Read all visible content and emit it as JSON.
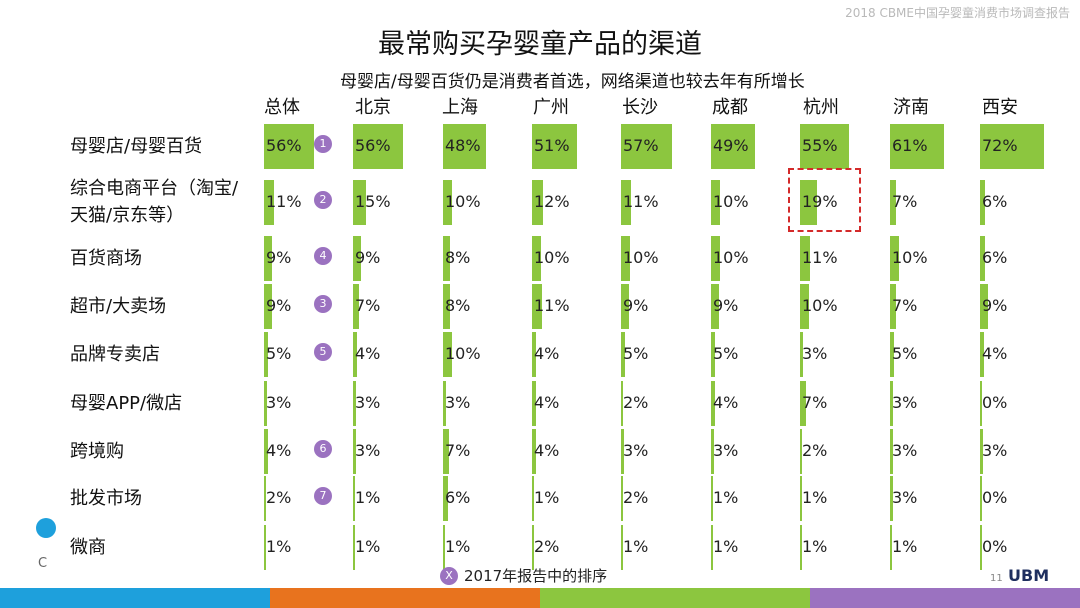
{
  "header_note": "2018 CBME中国孕婴童消费市场调查报告",
  "title": "最常购买孕婴童产品的渠道",
  "subtitle": "母婴店/母婴百货仍是消费者首选，网络渠道也较去年有所增长",
  "columns": [
    "总体",
    "北京",
    "上海",
    "广州",
    "长沙",
    "成都",
    "杭州",
    "济南",
    "西安"
  ],
  "rows": [
    {
      "label": "母婴店/母婴百货",
      "rank": "1",
      "values": [
        "56%",
        "56%",
        "48%",
        "51%",
        "57%",
        "49%",
        "55%",
        "61%",
        "72%"
      ]
    },
    {
      "label": "综合电商平台（淘宝/天猫/京东等）",
      "rank": "2",
      "values": [
        "11%",
        "15%",
        "10%",
        "12%",
        "11%",
        "10%",
        "19%",
        "7%",
        "6%"
      ]
    },
    {
      "label": "百货商场",
      "rank": "4",
      "values": [
        "9%",
        "9%",
        "8%",
        "10%",
        "10%",
        "10%",
        "11%",
        "10%",
        "6%"
      ]
    },
    {
      "label": "超市/大卖场",
      "rank": "3",
      "values": [
        "9%",
        "7%",
        "8%",
        "11%",
        "9%",
        "9%",
        "10%",
        "7%",
        "9%"
      ]
    },
    {
      "label": "品牌专卖店",
      "rank": "5",
      "values": [
        "5%",
        "4%",
        "10%",
        "4%",
        "5%",
        "5%",
        "3%",
        "5%",
        "4%"
      ]
    },
    {
      "label": "母婴APP/微店",
      "rank": "",
      "values": [
        "3%",
        "3%",
        "3%",
        "4%",
        "2%",
        "4%",
        "7%",
        "3%",
        "0%"
      ]
    },
    {
      "label": "跨境购",
      "rank": "6",
      "values": [
        "4%",
        "3%",
        "7%",
        "4%",
        "3%",
        "3%",
        "2%",
        "3%",
        "3%"
      ]
    },
    {
      "label": "批发市场",
      "rank": "7",
      "values": [
        "2%",
        "1%",
        "6%",
        "1%",
        "2%",
        "1%",
        "1%",
        "3%",
        "0%"
      ]
    },
    {
      "label": "微商",
      "rank": "",
      "values": [
        "1%",
        "1%",
        "1%",
        "2%",
        "1%",
        "1%",
        "1%",
        "1%",
        "0%"
      ]
    }
  ],
  "legend": {
    "symbol": "X",
    "text": "2017年报告中的排序"
  },
  "highlight_note": "杭州 综合电商平台 19%",
  "page_number": "11",
  "brand": "UBM",
  "left_logo_letter": "C",
  "colors": {
    "bar": "#8cc63f",
    "rank_badge": "#9b72c0",
    "highlight": "#d42a2a",
    "stripe": [
      "#1ea0dc",
      "#e8731e",
      "#8cc63f",
      "#9b72c0"
    ]
  }
}
